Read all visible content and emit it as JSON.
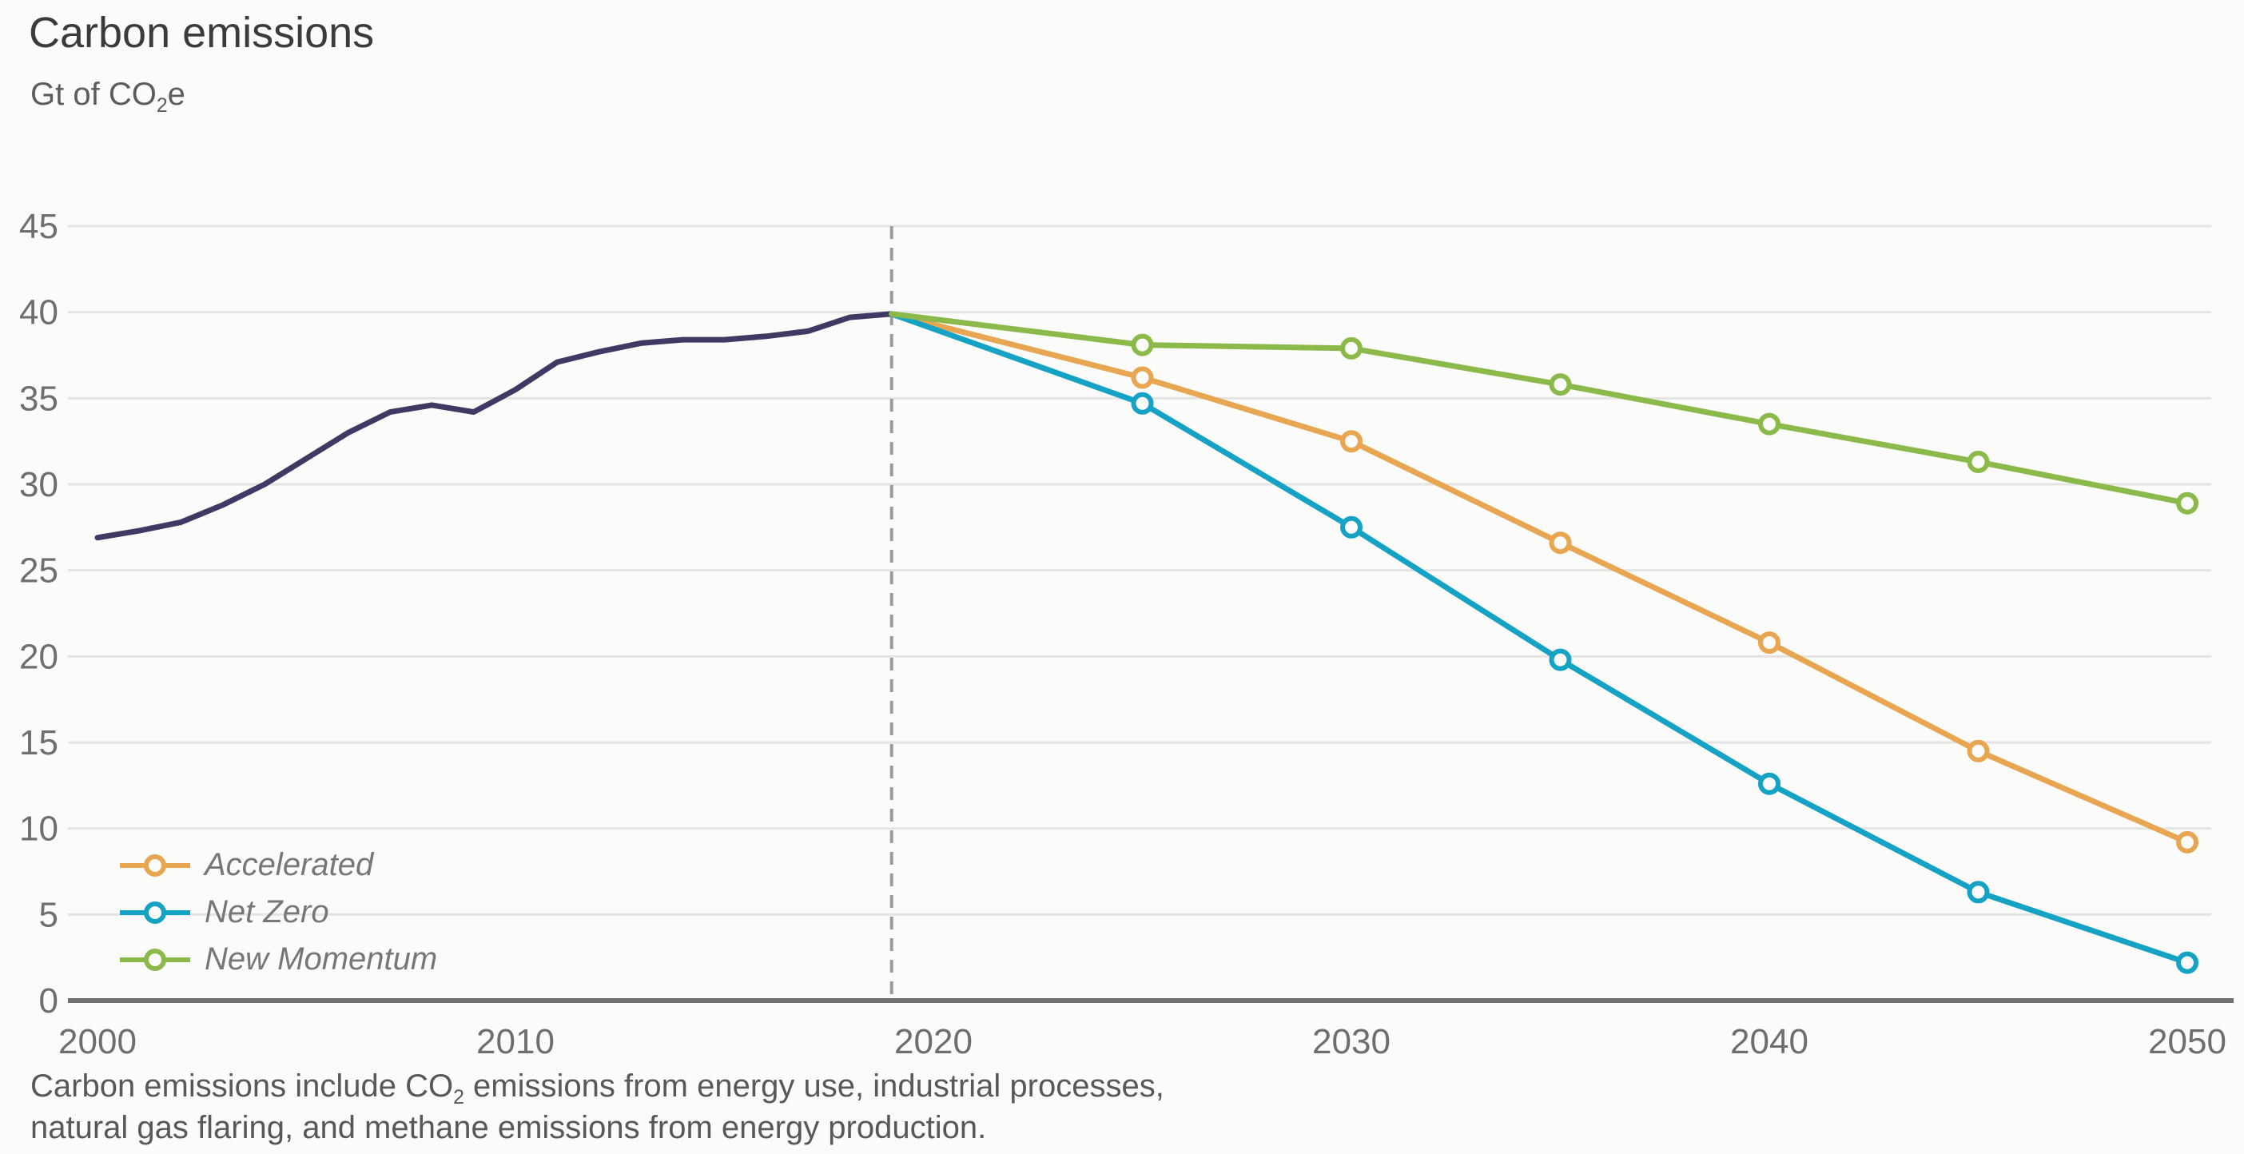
{
  "header": {
    "title": "Carbon emissions",
    "unit_prefix": "Gt of CO",
    "unit_sub": "2",
    "unit_suffix": "e"
  },
  "footnote": {
    "line1_pre": "Carbon emissions include CO",
    "line1_sub": "2",
    "line1_post": " emissions from energy use, industrial processes,",
    "line2": "natural gas flaring, and methane emissions from energy production."
  },
  "colors": {
    "background": "#fbfbfa",
    "gridline": "#e4e4e2",
    "axis": "#6f7072",
    "dashed": "#9c9c9c",
    "tick_label": "#6d6e71",
    "title_text": "#3b3b3b",
    "body_text": "#57585a",
    "legend_text": "#76777a"
  },
  "chart_data": {
    "type": "line",
    "title": "Carbon emissions",
    "ylabel": "Gt of CO2e",
    "xlim": [
      2000,
      2050
    ],
    "ylim": [
      0,
      45
    ],
    "x_ticks": [
      2000,
      2010,
      2020,
      2030,
      2040,
      2050
    ],
    "y_ticks": [
      0,
      5,
      10,
      15,
      20,
      25,
      30,
      35,
      40,
      45
    ],
    "grid": true,
    "legend_position": "bottom-left",
    "boundary_year": 2019,
    "series": [
      {
        "id": "historical",
        "color": "#3e3a63",
        "markers": false,
        "x": [
          2000,
          2001,
          2002,
          2003,
          2004,
          2005,
          2006,
          2007,
          2008,
          2009,
          2010,
          2011,
          2012,
          2013,
          2014,
          2015,
          2016,
          2017,
          2018,
          2019
        ],
        "y": [
          26.9,
          27.3,
          27.8,
          28.8,
          30.0,
          31.5,
          33.0,
          34.2,
          34.6,
          34.2,
          35.5,
          37.1,
          37.7,
          38.2,
          38.4,
          38.4,
          38.6,
          38.9,
          39.7,
          39.9
        ]
      },
      {
        "id": "accelerated",
        "name": "Accelerated",
        "color": "#e8a652",
        "markers": true,
        "marker_start_index": 1,
        "x": [
          2019,
          2025,
          2030,
          2035,
          2040,
          2045,
          2050
        ],
        "y": [
          39.9,
          36.2,
          32.5,
          26.6,
          20.8,
          14.5,
          9.2
        ]
      },
      {
        "id": "net-zero",
        "name": "Net Zero",
        "color": "#15a2c5",
        "markers": true,
        "marker_start_index": 1,
        "x": [
          2019,
          2025,
          2030,
          2035,
          2040,
          2045,
          2050
        ],
        "y": [
          39.9,
          34.7,
          27.5,
          19.8,
          12.6,
          6.3,
          2.2
        ]
      },
      {
        "id": "new-momentum",
        "name": "New Momentum",
        "color": "#8bb94a",
        "markers": true,
        "marker_start_index": 1,
        "x": [
          2019,
          2025,
          2030,
          2035,
          2040,
          2045,
          2050
        ],
        "y": [
          39.9,
          38.1,
          37.9,
          35.8,
          33.5,
          31.3,
          28.9
        ]
      }
    ]
  }
}
